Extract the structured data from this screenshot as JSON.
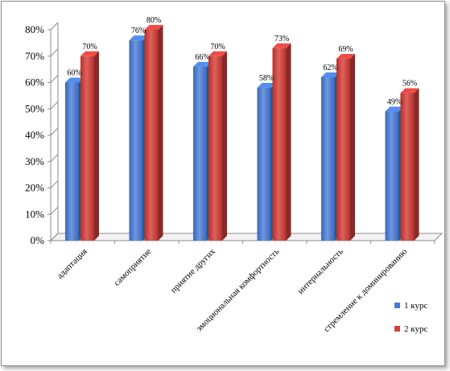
{
  "chart_data": {
    "type": "bar",
    "categories": [
      "адаптация",
      "самоприятие",
      "приятие других",
      "эмоциональная комфортность",
      "интернальность",
      "стремление к доминированию"
    ],
    "series": [
      {
        "name": "1 курс",
        "values": [
          60,
          76,
          66,
          58,
          62,
          49
        ],
        "labels": [
          "60%",
          "76%",
          "66%",
          "58%",
          "62%",
          "49%"
        ],
        "color": "#4a7bd0"
      },
      {
        "name": "2 курс",
        "values": [
          70,
          80,
          70,
          73,
          69,
          56
        ],
        "labels": [
          "70%",
          "80%",
          "70%",
          "73%",
          "69%",
          "56%"
        ],
        "color": "#d0423e"
      }
    ],
    "ylim": [
      0,
      80
    ],
    "yticks": [
      "0%",
      "10%",
      "20%",
      "30%",
      "40%",
      "50%",
      "60%",
      "70%",
      "80%"
    ],
    "grid": false,
    "legend_position": "right"
  }
}
